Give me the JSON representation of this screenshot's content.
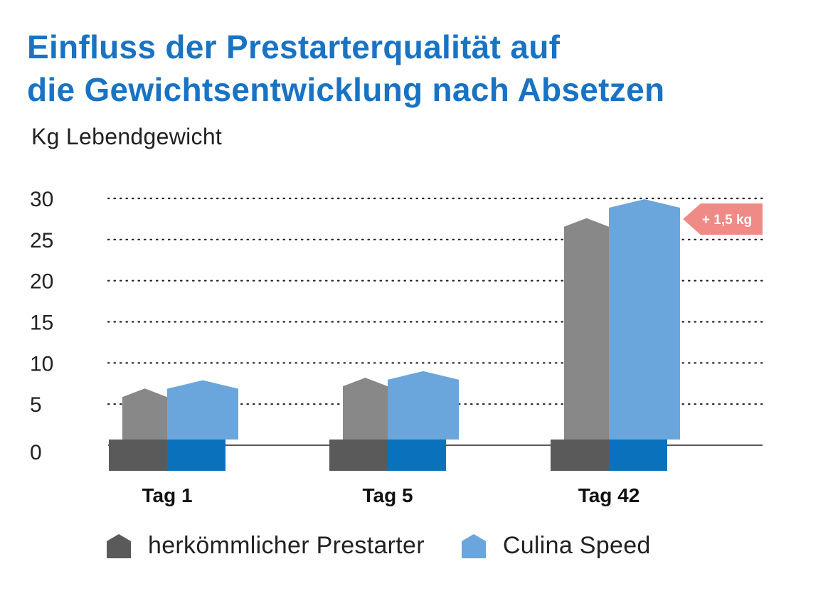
{
  "title_line1": "Einfluss der Prestarterqualität auf",
  "title_line2": "die Gewichtsentwicklung nach Absetzen",
  "chart_data": {
    "type": "bar",
    "ylabel": "Kg Lebendgewicht",
    "ylim": [
      0,
      30
    ],
    "yticks": [
      "0",
      "5",
      "10",
      "15",
      "20",
      "25",
      "30"
    ],
    "grid": true,
    "categories": [
      "Tag 1",
      "Tag 5",
      "Tag 42"
    ],
    "series": [
      {
        "name": "herkömmlicher Prestarter",
        "values": [
          6.9,
          8.2,
          27.6
        ],
        "color": "#888888",
        "base_color": "#5a5a5a"
      },
      {
        "name": "Culina Speed",
        "values": [
          7.9,
          9.0,
          29.9
        ],
        "color": "#6aa5dc",
        "base_color": "#0a72bd"
      }
    ],
    "annotation": {
      "text": "+ 1,5 kg",
      "color": "#f08a86"
    },
    "legend_position": "bottom"
  }
}
